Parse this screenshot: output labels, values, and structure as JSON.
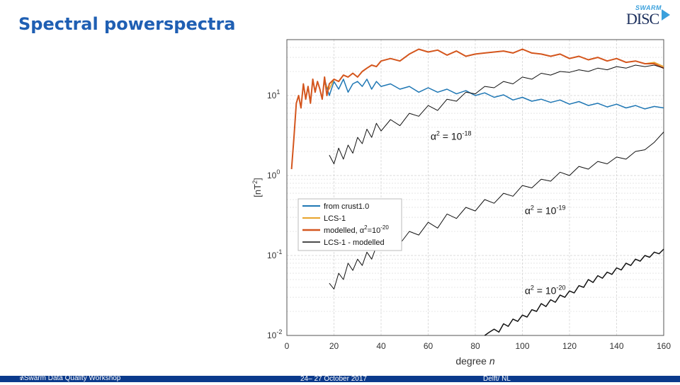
{
  "slide": {
    "title": "Spectral powerspectra"
  },
  "logo": {
    "top_text": "SWARM",
    "main_text": "DISC"
  },
  "footer": {
    "workshop_prefix": "7",
    "workshop_sup": "th",
    "workshop_rest": " Swarm Data Quality Workshop",
    "dates": "24– 27 October 2017",
    "location": "Delft/ NL"
  },
  "colors": {
    "title": "#1f5fb3",
    "crust": "#1f77b4",
    "lcs": "#e8a32a",
    "modelled": "#d4561e",
    "diff": "#000000",
    "footer_bg": "#0b3a8c"
  },
  "chart_data": {
    "type": "line",
    "xlabel": "degree",
    "xlabel_var": "n",
    "ylabel": "[nT",
    "ylabel_sup": "2",
    "ylabel_end": "]",
    "xlim": [
      0,
      160
    ],
    "ylim": [
      0.01,
      50
    ],
    "yscale": "log",
    "x_ticks": [
      0,
      20,
      40,
      60,
      80,
      100,
      120,
      140,
      160
    ],
    "x_tick_labels": [
      "0",
      "20",
      "40",
      "60",
      "80",
      "100",
      "120",
      "140",
      "160"
    ],
    "y_ticks": [
      0.01,
      0.1,
      1,
      10
    ],
    "y_tick_labels": [
      {
        "base": "10",
        "exp": "-2"
      },
      {
        "base": "10",
        "exp": "-1"
      },
      {
        "base": "10",
        "exp": "0"
      },
      {
        "base": "10",
        "exp": "1"
      }
    ],
    "grid": true,
    "legend_position": "middle-left",
    "annotations": [
      {
        "prefix": "α",
        "sup": "2",
        "mid": " = 10",
        "exp": "-18",
        "x": 61,
        "y": 2.8
      },
      {
        "prefix": "α",
        "sup": "2",
        "mid": " = 10",
        "exp": "-19",
        "x": 101,
        "y": 0.33
      },
      {
        "prefix": "α",
        "sup": "2",
        "mid": " = 10",
        "exp": "-20",
        "x": 101,
        "y": 0.033
      }
    ],
    "series": [
      {
        "name": "from crust1.0",
        "name_sup": "",
        "color": "#1f77b4",
        "width": 1.5,
        "x": [
          16,
          18,
          20,
          22,
          24,
          26,
          28,
          30,
          32,
          34,
          36,
          38,
          40,
          44,
          48,
          52,
          56,
          60,
          64,
          68,
          72,
          76,
          80,
          84,
          88,
          92,
          96,
          100,
          104,
          108,
          112,
          116,
          120,
          124,
          128,
          132,
          136,
          140,
          144,
          148,
          152,
          156,
          160
        ],
        "y": [
          16,
          10,
          15,
          12,
          16,
          11,
          14,
          15,
          13,
          16,
          12,
          15,
          13,
          14,
          12,
          13,
          11,
          12.5,
          11,
          12,
          10.5,
          11.5,
          10,
          10.8,
          9.5,
          10.2,
          8.8,
          9.5,
          8.5,
          9,
          8.2,
          8.8,
          7.8,
          8.4,
          7.5,
          8,
          7.2,
          7.8,
          7,
          7.5,
          6.8,
          7.3,
          7
        ]
      },
      {
        "name": "LCS-1",
        "name_sup": "",
        "color": "#e8a32a",
        "width": 1.5,
        "x": [
          16,
          18,
          20,
          22,
          24,
          26,
          28,
          30,
          32,
          34,
          36,
          38,
          40,
          44,
          48,
          52,
          56,
          60,
          64,
          68,
          72,
          76,
          80,
          84,
          88,
          92,
          96,
          100,
          104,
          108,
          112,
          116,
          120,
          124,
          128,
          132,
          136,
          140,
          144,
          148,
          152,
          156,
          160
        ],
        "y": [
          14,
          12,
          16,
          15,
          18,
          17,
          19,
          17,
          20,
          22,
          24,
          23,
          27,
          29,
          27,
          33,
          38,
          35,
          37,
          32,
          36,
          31,
          33,
          34,
          35,
          36,
          34,
          38,
          34,
          33,
          31,
          33,
          29,
          31,
          28,
          30,
          27,
          29,
          26,
          27,
          25,
          26,
          23
        ]
      },
      {
        "name": "modelled, α",
        "name_sup": "2",
        "name_end": "=10",
        "name_exp": "-20",
        "color": "#d4561e",
        "width": 2,
        "x": [
          2,
          3,
          4,
          5,
          6,
          7,
          8,
          9,
          10,
          11,
          12,
          13,
          14,
          15,
          16,
          17,
          18,
          20,
          22,
          24,
          26,
          28,
          30,
          32,
          34,
          36,
          38,
          40,
          44,
          48,
          52,
          56,
          60,
          64,
          68,
          72,
          76,
          80,
          84,
          88,
          92,
          96,
          100,
          104,
          108,
          112,
          116,
          120,
          124,
          128,
          132,
          136,
          140,
          144,
          148,
          152,
          156,
          160
        ],
        "y": [
          1.2,
          3,
          8,
          10,
          7,
          14,
          9,
          13,
          8,
          16,
          11,
          15,
          12,
          9,
          17,
          10,
          14,
          16,
          15,
          18,
          17,
          19,
          17,
          20,
          22,
          24,
          23,
          27,
          29,
          27,
          33,
          38,
          35,
          37,
          32,
          36,
          31,
          33,
          34,
          35,
          36,
          34,
          38,
          34,
          33,
          31,
          33,
          29,
          31,
          28,
          30,
          27,
          29,
          26,
          27,
          25,
          25,
          22
        ]
      },
      {
        "name": "LCS-1 - modelled",
        "name_sup": "",
        "color": "#111111",
        "width": 1,
        "x": [
          18,
          20,
          22,
          24,
          26,
          28,
          30,
          32,
          34,
          36,
          38,
          40,
          44,
          48,
          52,
          56,
          60,
          64,
          68,
          72,
          76,
          80,
          84,
          88,
          92,
          96,
          100,
          104,
          108,
          112,
          116,
          120,
          124,
          128,
          132,
          136,
          140,
          144,
          148,
          152,
          156,
          160
        ],
        "y": [
          1.8,
          1.4,
          2.2,
          1.6,
          2.4,
          1.9,
          3,
          2.5,
          3.8,
          3,
          4.5,
          3.6,
          5,
          4.2,
          6,
          5.5,
          7.5,
          6.5,
          9,
          8.5,
          11,
          10.5,
          13,
          12.5,
          15,
          14,
          17,
          16,
          19,
          18,
          20,
          19.5,
          21,
          20,
          22,
          21,
          23,
          22,
          24,
          23,
          24,
          22
        ]
      },
      {
        "name": "alpha2 = 1e-19",
        "legend": false,
        "color": "#111111",
        "width": 1,
        "x": [
          18,
          20,
          22,
          24,
          26,
          28,
          30,
          32,
          34,
          36,
          38,
          40,
          44,
          48,
          52,
          56,
          60,
          64,
          68,
          72,
          76,
          80,
          84,
          88,
          92,
          96,
          100,
          104,
          108,
          112,
          116,
          120,
          124,
          128,
          132,
          136,
          140,
          144,
          148,
          152,
          156,
          160
        ],
        "y": [
          0.045,
          0.038,
          0.06,
          0.05,
          0.08,
          0.065,
          0.09,
          0.075,
          0.11,
          0.09,
          0.13,
          0.12,
          0.16,
          0.14,
          0.2,
          0.18,
          0.26,
          0.22,
          0.33,
          0.29,
          0.4,
          0.36,
          0.5,
          0.45,
          0.6,
          0.55,
          0.75,
          0.7,
          0.9,
          0.85,
          1.1,
          1.0,
          1.3,
          1.2,
          1.5,
          1.4,
          1.7,
          1.6,
          2.0,
          2.1,
          2.6,
          3.5
        ]
      },
      {
        "name": "alpha2 = 1e-20",
        "legend": false,
        "color": "#111111",
        "width": 1.5,
        "x": [
          84,
          86,
          88,
          90,
          92,
          94,
          96,
          98,
          100,
          102,
          104,
          106,
          108,
          110,
          112,
          114,
          116,
          118,
          120,
          122,
          124,
          126,
          128,
          130,
          132,
          134,
          136,
          138,
          140,
          142,
          144,
          146,
          148,
          150,
          152,
          154,
          156,
          158,
          160
        ],
        "y": [
          0.01,
          0.011,
          0.012,
          0.011,
          0.014,
          0.013,
          0.016,
          0.015,
          0.018,
          0.017,
          0.021,
          0.02,
          0.025,
          0.023,
          0.028,
          0.026,
          0.032,
          0.03,
          0.036,
          0.034,
          0.042,
          0.04,
          0.05,
          0.046,
          0.056,
          0.052,
          0.062,
          0.058,
          0.07,
          0.066,
          0.08,
          0.075,
          0.09,
          0.085,
          0.1,
          0.095,
          0.11,
          0.105,
          0.12
        ]
      }
    ]
  }
}
